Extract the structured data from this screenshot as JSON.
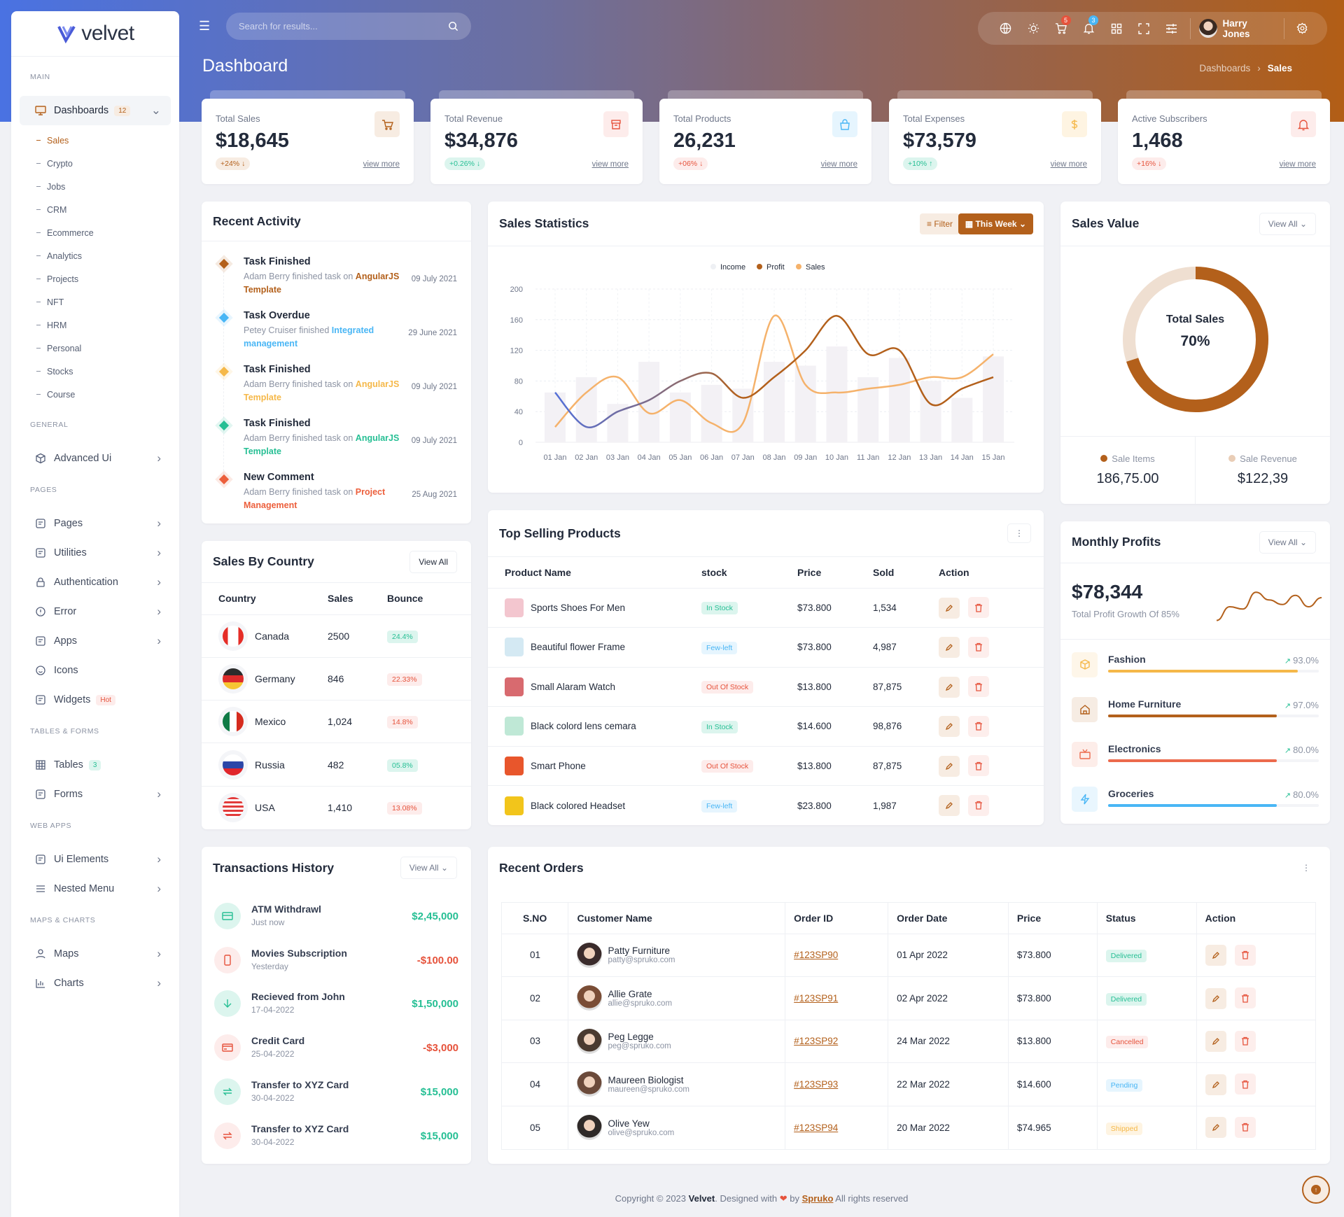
{
  "brand": {
    "name": "velvet",
    "primary": "#b3601b"
  },
  "header": {
    "search_placeholder": "Search for results...",
    "icons": [
      "globe-icon",
      "sun-icon",
      "cart-icon",
      "bell-icon",
      "grid-icon",
      "fullscreen-icon",
      "sliders-icon"
    ],
    "cart_badge": "5",
    "bell_badge": "3",
    "user_name": "Harry Jones"
  },
  "page": {
    "title": "Dashboard",
    "breadcrumb": [
      "Dashboards",
      "Sales"
    ]
  },
  "sidebar": {
    "sections": [
      {
        "label": "MAIN",
        "items": [
          {
            "label": "Dashboards",
            "icon": "monitor-icon",
            "badge": "12",
            "open": true,
            "chevron": true,
            "children": [
              "Sales",
              "Crypto",
              "Jobs",
              "CRM",
              "Ecommerce",
              "Analytics",
              "Projects",
              "NFT",
              "HRM",
              "Personal",
              "Stocks",
              "Course"
            ],
            "active_child": 0
          }
        ]
      },
      {
        "label": "GENERAL",
        "items": [
          {
            "label": "Advanced Ui",
            "icon": "box-icon",
            "chevron": true
          }
        ]
      },
      {
        "label": "PAGES",
        "items": [
          {
            "label": "Pages",
            "icon": "file-icon",
            "chevron": true
          },
          {
            "label": "Utilities",
            "icon": "shield-icon",
            "chevron": true
          },
          {
            "label": "Authentication",
            "icon": "lock-icon",
            "chevron": true
          },
          {
            "label": "Error",
            "icon": "alert-icon",
            "chevron": true
          },
          {
            "label": "Apps",
            "icon": "apps-icon",
            "chevron": true
          },
          {
            "label": "Icons",
            "icon": "smile-icon",
            "chevron": false
          },
          {
            "label": "Widgets",
            "icon": "widget-icon",
            "badge": "Hot",
            "chevron": false
          }
        ]
      },
      {
        "label": "TABLES & FORMS",
        "items": [
          {
            "label": "Tables",
            "icon": "table-icon",
            "badge": "3",
            "chevron": false
          },
          {
            "label": "Forms",
            "icon": "form-icon",
            "chevron": true
          }
        ]
      },
      {
        "label": "WEB APPS",
        "items": [
          {
            "label": "Ui Elements",
            "icon": "magnet-icon",
            "chevron": true
          },
          {
            "label": "Nested Menu",
            "icon": "menu-icon",
            "chevron": true
          }
        ]
      },
      {
        "label": "MAPS & CHARTS",
        "items": [
          {
            "label": "Maps",
            "icon": "map-pin-icon",
            "chevron": true
          },
          {
            "label": "Charts",
            "icon": "chart-icon",
            "chevron": true
          }
        ]
      }
    ]
  },
  "stats": [
    {
      "title": "Total Sales",
      "value": "$18,645",
      "change": "+24% ↓",
      "tone": "primary",
      "icon": "cart-icon",
      "link": "view more"
    },
    {
      "title": "Total Revenue",
      "value": "$34,876",
      "change": "+0.26% ↓",
      "tone": "success",
      "icon": "archive-icon",
      "link": "view more"
    },
    {
      "title": "Total Products",
      "value": "26,231",
      "change": "+06% ↓",
      "tone": "danger",
      "icon": "bag-icon",
      "link": "view more"
    },
    {
      "title": "Total Expenses",
      "value": "$73,579",
      "change": "+10% ↑",
      "tone": "success",
      "icon": "dollar-icon",
      "link": "view more"
    },
    {
      "title": "Active Subscribers",
      "value": "1,468",
      "change": "+16% ↓",
      "tone": "danger",
      "icon": "bell-icon",
      "link": "view more"
    }
  ],
  "colors": {
    "primary": "#b3601b",
    "success": "#26bf94",
    "danger": "#e6533c",
    "info": "#49b6f5",
    "warning": "#f5b849",
    "secondary": "#ec7f3c"
  },
  "recent_activity": {
    "title": "Recent Activity",
    "items": [
      {
        "title": "Task Finished",
        "text": "Adam Berry finished task on ",
        "link": "AngularJS Template",
        "date": "09 July 2021",
        "color": "#b3601b"
      },
      {
        "title": "Task Overdue",
        "text": "Petey Cruiser finished ",
        "link": "Integrated management",
        "date": "29 June 2021",
        "color": "#49b6f5"
      },
      {
        "title": "Task Finished",
        "text": "Adam Berry finished task on ",
        "link": "AngularJS Template",
        "date": "09 July 2021",
        "color": "#f5b849"
      },
      {
        "title": "Task Finished",
        "text": "Adam Berry finished task on ",
        "link": "AngularJS Template",
        "date": "09 July 2021",
        "color": "#26bf94"
      },
      {
        "title": "New Comment",
        "text": "Adam Berry finished task on ",
        "link": "Project Management",
        "date": "25 Aug 2021",
        "color": "#ec5f3c"
      }
    ]
  },
  "sales_statistics": {
    "title": "Sales Statistics",
    "filter_label": "Filter",
    "period_label": "This Week"
  },
  "chart_data": [
    {
      "type": "bar+line",
      "categories": [
        "01 Jan",
        "02 Jan",
        "03 Jan",
        "04 Jan",
        "05 Jan",
        "06 Jan",
        "07 Jan",
        "08 Jan",
        "09 Jan",
        "10 Jan",
        "11 Jan",
        "12 Jan",
        "13 Jan",
        "14 Jan",
        "15 Jan"
      ],
      "series": [
        {
          "name": "Income",
          "type": "bar",
          "color": "#f3f1f5",
          "values": [
            65,
            85,
            50,
            105,
            65,
            75,
            70,
            105,
            100,
            125,
            85,
            110,
            80,
            58,
            112
          ]
        },
        {
          "name": "Profit",
          "type": "line",
          "color": "#b3601b",
          "values": [
            65,
            20,
            40,
            55,
            80,
            90,
            58,
            85,
            120,
            165,
            115,
            120,
            50,
            70,
            85
          ]
        },
        {
          "name": "Sales",
          "type": "line",
          "color": "#f5b26b",
          "values": [
            20,
            65,
            85,
            38,
            55,
            25,
            25,
            165,
            75,
            65,
            70,
            75,
            85,
            85,
            115
          ]
        }
      ],
      "yticks": [
        0,
        40,
        80,
        120,
        160,
        200
      ],
      "ylim": [
        0,
        200
      ],
      "legend": "top-center",
      "grid": true
    },
    {
      "type": "donut",
      "label": "Total Sales",
      "value_label": "70%",
      "value": 70,
      "colors": [
        "#b3601b",
        "#efdfd1"
      ]
    },
    {
      "type": "sparkline",
      "values": [
        10,
        40,
        35,
        72,
        55,
        45,
        65,
        40,
        60
      ],
      "color": "#b3601b"
    }
  ],
  "sales_value": {
    "title": "Sales Value",
    "view_all": "View All",
    "center_label": "Total Sales",
    "center_value": "70%",
    "legend": [
      {
        "label": "Sale Items",
        "value": "186,75.00",
        "color": "#b3601b"
      },
      {
        "label": "Sale Revenue",
        "value": "$122,39",
        "color": "#e9cdb6"
      }
    ]
  },
  "sales_by_country": {
    "title": "Sales By Country",
    "view_all": "View All",
    "columns": [
      "Country",
      "Sales",
      "Bounce"
    ],
    "rows": [
      {
        "country": "Canada",
        "sales": "2500",
        "bounce": "24.4%",
        "tone": "success"
      },
      {
        "country": "Germany",
        "sales": "846",
        "bounce": "22.33%",
        "tone": "danger"
      },
      {
        "country": "Mexico",
        "sales": "1,024",
        "bounce": "14.8%",
        "tone": "danger"
      },
      {
        "country": "Russia",
        "sales": "482",
        "bounce": "05.8%",
        "tone": "success"
      },
      {
        "country": "USA",
        "sales": "1,410",
        "bounce": "13.08%",
        "tone": "danger"
      }
    ]
  },
  "top_products": {
    "title": "Top Selling Products",
    "columns": [
      "Product Name",
      "stock",
      "Price",
      "Sold",
      "Action"
    ],
    "rows": [
      {
        "name": "Sports Shoes For Men",
        "stock": "In Stock",
        "tone": "success",
        "price": "$73.800",
        "sold": "1,534",
        "img": "#f3c6cf"
      },
      {
        "name": "Beautiful flower Frame",
        "stock": "Few-left",
        "tone": "info",
        "price": "$73.800",
        "sold": "4,987",
        "img": "#d4e9f3"
      },
      {
        "name": "Small Alaram Watch",
        "stock": "Out Of Stock",
        "tone": "danger",
        "price": "$13.800",
        "sold": "87,875",
        "img": "#d86a6f"
      },
      {
        "name": "Black colord lens cemara",
        "stock": "In Stock",
        "tone": "success",
        "price": "$14.600",
        "sold": "98,876",
        "img": "#bfe8d6"
      },
      {
        "name": "Smart Phone",
        "stock": "Out Of Stock",
        "tone": "danger",
        "price": "$13.800",
        "sold": "87,875",
        "img": "#e8562c"
      },
      {
        "name": "Black colored Headset",
        "stock": "Few-left",
        "tone": "info",
        "price": "$23.800",
        "sold": "1,987",
        "img": "#f2c51b"
      }
    ]
  },
  "monthly_profits": {
    "title": "Monthly Profits",
    "view_all": "View All",
    "amount": "$78,344",
    "subtitle": "Total Profit Growth Of 85%",
    "items": [
      {
        "label": "Fashion",
        "percent": "93.0%",
        "fill": 90,
        "color": "#f5b849",
        "icon": "box-icon"
      },
      {
        "label": "Home Furniture",
        "percent": "97.0%",
        "fill": 80,
        "color": "#b3601b",
        "icon": "home-icon"
      },
      {
        "label": "Electronics",
        "percent": "80.0%",
        "fill": 80,
        "color": "#ec6a4c",
        "icon": "tv-icon"
      },
      {
        "label": "Groceries",
        "percent": "80.0%",
        "fill": 80,
        "color": "#49b6f5",
        "icon": "bolt-icon"
      }
    ]
  },
  "transactions": {
    "title": "Transactions History",
    "view_all": "View All",
    "items": [
      {
        "title": "ATM Withdrawl",
        "sub": "Just now",
        "amount": "$2,45,000",
        "tone": "success",
        "icon": "card-icon"
      },
      {
        "title": "Movies Subscription",
        "sub": "Yesterday",
        "amount": "-$100.00",
        "tone": "danger",
        "icon": "phone-icon"
      },
      {
        "title": "Recieved from John",
        "sub": "17-04-2022",
        "amount": "$1,50,000",
        "tone": "success",
        "icon": "arrow-down-icon"
      },
      {
        "title": "Credit Card",
        "sub": "25-04-2022",
        "amount": "-$3,000",
        "tone": "danger",
        "icon": "credit-card-icon"
      },
      {
        "title": "Transfer to XYZ Card",
        "sub": "30-04-2022",
        "amount": "$15,000",
        "tone": "success",
        "icon": "transfer-icon"
      },
      {
        "title": "Transfer to XYZ Card",
        "sub": "30-04-2022",
        "amount": "$15,000",
        "tone": "success",
        "icon": "transfer-icon",
        "icon_tone": "danger"
      }
    ]
  },
  "recent_orders": {
    "title": "Recent Orders",
    "columns": [
      "S.NO",
      "Customer Name",
      "Order ID",
      "Order Date",
      "Price",
      "Status",
      "Action"
    ],
    "rows": [
      {
        "sno": "01",
        "name": "Patty Furniture",
        "email": "patty@spruko.com",
        "order_id": "#123SP90",
        "date": "01 Apr 2022",
        "price": "$73.800",
        "status": "Delivered",
        "tone": "success"
      },
      {
        "sno": "02",
        "name": "Allie Grate",
        "email": "allie@spruko.com",
        "order_id": "#123SP91",
        "date": "02 Apr 2022",
        "price": "$73.800",
        "status": "Delivered",
        "tone": "success"
      },
      {
        "sno": "03",
        "name": "Peg Legge",
        "email": "peg@spruko.com",
        "order_id": "#123SP92",
        "date": "24 Mar 2022",
        "price": "$13.800",
        "status": "Cancelled",
        "tone": "danger"
      },
      {
        "sno": "04",
        "name": "Maureen Biologist",
        "email": "maureen@spruko.com",
        "order_id": "#123SP93",
        "date": "22 Mar 2022",
        "price": "$14.600",
        "status": "Pending",
        "tone": "info"
      },
      {
        "sno": "05",
        "name": "Olive Yew",
        "email": "olive@spruko.com",
        "order_id": "#123SP94",
        "date": "20 Mar 2022",
        "price": "$74.965",
        "status": "Shipped",
        "tone": "warning"
      }
    ]
  },
  "footer": {
    "prefix": "Copyright © 2023 ",
    "brand": "Velvet",
    "middle": ". Designed with ",
    "by": " by ",
    "company": "Spruko",
    "suffix": " All rights reserved"
  }
}
